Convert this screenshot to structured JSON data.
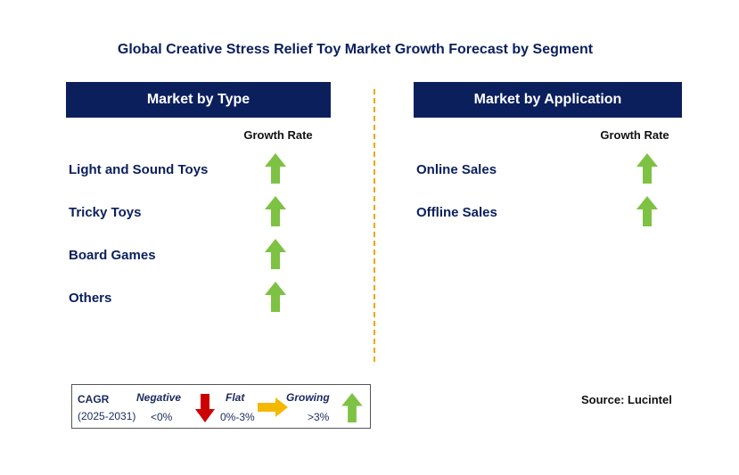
{
  "title": "Global Creative Stress Relief Toy Market Growth Forecast by Segment",
  "left_panel": {
    "header": "Market by Type",
    "column_header": "Growth Rate",
    "items": [
      {
        "label": "Light and Sound Toys",
        "trend": "growing"
      },
      {
        "label": "Tricky Toys",
        "trend": "growing"
      },
      {
        "label": "Board Games",
        "trend": "growing"
      },
      {
        "label": "Others",
        "trend": "growing"
      }
    ]
  },
  "right_panel": {
    "header": "Market by Application",
    "column_header": "Growth Rate",
    "items": [
      {
        "label": "Online Sales",
        "trend": "growing"
      },
      {
        "label": "Offline Sales",
        "trend": "growing"
      }
    ]
  },
  "legend": {
    "cagr_label": "CAGR",
    "period": "(2025-2031)",
    "negative": {
      "label": "Negative",
      "range": "<0%",
      "icon": "down-arrow-icon",
      "color": "#cc0000"
    },
    "flat": {
      "label": "Flat",
      "range": "0%-3%",
      "icon": "right-arrow-icon",
      "color": "#f5b800"
    },
    "growing": {
      "label": "Growing",
      "range": ">3%",
      "icon": "up-arrow-icon",
      "color": "#7dc243"
    }
  },
  "source": "Source: Lucintel",
  "colors": {
    "header_bg": "#0b1f5c",
    "text_navy": "#0b1f5c",
    "divider": "#f0a500",
    "growing": "#7dc243",
    "negative": "#cc0000",
    "flat": "#f5b800"
  }
}
